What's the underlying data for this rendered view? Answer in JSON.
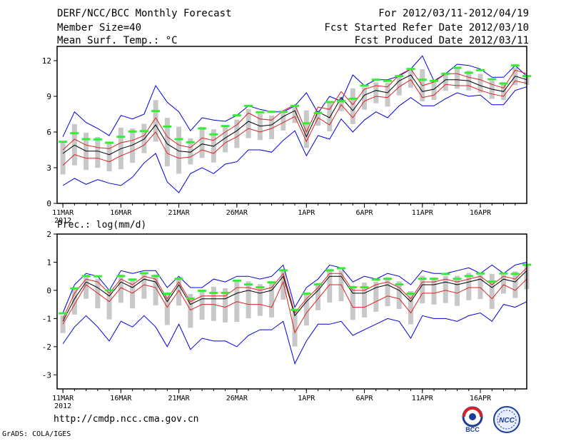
{
  "header": {
    "title": "DERF/NCC/BCC Monthly Forecast",
    "member_size": "Member Size=40",
    "variable": "Mean Surf. Temp.: °C",
    "for_range": "For 2012/03/11-2012/04/19",
    "fcst_started": "Fcst Started Refer Date 2012/03/10",
    "fcst_produced": "Fcst Produced Date 2012/03/11"
  },
  "footer": {
    "url": "http://cmdp.ncc.cma.gov.cn",
    "grads": "GrADS: COLA/IGES",
    "logo_bcc": "BCC",
    "logo_ncc": "NCC"
  },
  "colors": {
    "mean": "#000000",
    "spread": "#dd2222",
    "extreme": "#0000dd",
    "box": "#c8c8c8",
    "marker": "#33ee33"
  },
  "chart_data": [
    {
      "type": "line",
      "title": "Mean Surf. Temp.: °C",
      "x_tick_labels": [
        "11MAR",
        "16MAR",
        "21MAR",
        "26MAR",
        "1APR",
        "6APR",
        "11APR",
        "16APR"
      ],
      "x_tick_days": [
        0,
        5,
        10,
        15,
        21,
        26,
        31,
        36
      ],
      "x_sub_label": "2012",
      "x_range": [
        -0.5,
        40
      ],
      "ylim": [
        0,
        13.2
      ],
      "y_ticks": [
        0,
        3,
        6,
        9,
        12
      ],
      "series": [
        {
          "name": "ensemble max",
          "color_key": "extreme",
          "values": [
            5.6,
            7.7,
            6.8,
            6.3,
            5.7,
            7.4,
            7.1,
            7.5,
            9.9,
            8.5,
            7.7,
            6.1,
            7.2,
            7.0,
            6.9,
            7.4,
            8.2,
            7.9,
            7.7,
            7.7,
            8.2,
            9.3,
            7.6,
            9.0,
            8.6,
            10.8,
            9.9,
            10.4,
            10.4,
            10.7,
            11.3,
            12.4,
            10.3,
            10.9,
            11.7,
            11.6,
            11.3,
            10.6,
            10.6,
            11.6,
            10.7
          ]
        },
        {
          "name": "upper spread",
          "color_key": "spread",
          "values": [
            4.5,
            5.4,
            4.9,
            4.7,
            4.6,
            5.1,
            5.3,
            5.7,
            7.2,
            5.6,
            4.9,
            4.7,
            5.5,
            5.3,
            6.0,
            6.6,
            7.6,
            7.1,
            7.0,
            7.8,
            8.3,
            6.0,
            8.1,
            7.9,
            9.4,
            8.3,
            9.6,
            9.9,
            9.8,
            10.8,
            11.3,
            9.9,
            10.2,
            10.9,
            10.9,
            10.6,
            10.4,
            10.0,
            9.7,
            11.2,
            10.9
          ]
        },
        {
          "name": "ensemble mean",
          "color_key": "mean",
          "values": [
            4.2,
            4.9,
            4.4,
            4.4,
            4.1,
            4.6,
            4.9,
            5.4,
            6.6,
            5.0,
            4.4,
            4.3,
            5.0,
            4.8,
            5.5,
            6.1,
            6.9,
            6.5,
            6.6,
            7.3,
            7.8,
            5.6,
            7.7,
            7.2,
            8.9,
            7.8,
            9.1,
            9.5,
            9.3,
            10.3,
            10.8,
            9.4,
            9.6,
            10.4,
            10.4,
            10.3,
            9.9,
            9.6,
            9.4,
            10.7,
            10.4
          ]
        },
        {
          "name": "lower spread",
          "color_key": "spread",
          "values": [
            3.2,
            4.1,
            3.8,
            3.8,
            3.5,
            4.0,
            4.4,
            4.9,
            6.0,
            4.2,
            3.8,
            3.9,
            4.5,
            4.2,
            5.1,
            5.6,
            6.3,
            6.0,
            6.3,
            6.8,
            7.3,
            5.2,
            7.2,
            6.6,
            8.3,
            7.2,
            8.6,
            9.0,
            8.9,
            9.8,
            10.4,
            8.9,
            9.1,
            10.0,
            9.9,
            9.9,
            9.5,
            9.2,
            9.0,
            10.3,
            10.1
          ]
        },
        {
          "name": "ensemble min",
          "color_key": "extreme",
          "values": [
            1.5,
            2.1,
            1.6,
            2.0,
            1.7,
            1.5,
            2.2,
            3.4,
            4.2,
            1.8,
            0.9,
            2.5,
            3.0,
            2.5,
            3.3,
            3.5,
            4.5,
            4.5,
            4.3,
            5.3,
            6.1,
            4.0,
            5.7,
            5.4,
            7.1,
            6.0,
            7.0,
            7.7,
            7.2,
            8.2,
            8.9,
            8.2,
            8.2,
            8.8,
            9.3,
            9.0,
            9.1,
            8.3,
            8.3,
            9.5,
            9.8
          ]
        }
      ]
    },
    {
      "type": "line",
      "title": "Prec.: log(mm/d)",
      "x_tick_labels": [
        "11MAR",
        "16MAR",
        "21MAR",
        "26MAR",
        "1APR",
        "6APR",
        "11APR",
        "16APR"
      ],
      "x_tick_days": [
        0,
        5,
        10,
        15,
        21,
        26,
        31,
        36
      ],
      "x_sub_label": "2012",
      "x_range": [
        -0.5,
        40
      ],
      "ylim": [
        -3.5,
        2
      ],
      "y_ticks": [
        -3,
        -2,
        -1,
        0,
        1,
        2
      ],
      "series": [
        {
          "name": "ensemble max",
          "color_key": "extreme",
          "values": [
            -0.8,
            0.2,
            0.6,
            0.5,
            0.0,
            0.7,
            0.6,
            0.7,
            0.7,
            0.1,
            0.5,
            0.1,
            0.1,
            0.4,
            0.3,
            0.5,
            0.5,
            0.4,
            0.5,
            0.9,
            -0.6,
            0.1,
            0.4,
            0.9,
            0.8,
            0.3,
            0.5,
            0.4,
            0.6,
            0.5,
            0.2,
            0.7,
            0.6,
            0.6,
            0.7,
            0.8,
            0.6,
            0.9,
            0.6,
            0.9,
            1.0
          ]
        },
        {
          "name": "upper spread",
          "color_key": "spread",
          "values": [
            -1.0,
            -0.1,
            0.4,
            0.3,
            -0.1,
            0.4,
            0.2,
            0.5,
            0.4,
            -0.3,
            0.3,
            -0.4,
            -0.2,
            -0.2,
            -0.2,
            0.1,
            0.1,
            0.0,
            0.1,
            0.6,
            -0.8,
            -0.3,
            0.1,
            0.6,
            0.6,
            0.0,
            0.0,
            0.2,
            0.3,
            0.1,
            -0.3,
            0.3,
            0.3,
            0.4,
            0.3,
            0.4,
            0.5,
            0.2,
            0.5,
            0.4,
            0.8
          ]
        },
        {
          "name": "ensemble mean",
          "color_key": "mean",
          "values": [
            -1.1,
            -0.3,
            0.3,
            0.1,
            -0.2,
            0.3,
            0.1,
            0.4,
            0.3,
            -0.4,
            0.2,
            -0.5,
            -0.3,
            -0.3,
            -0.3,
            -0.1,
            0.0,
            -0.1,
            0.0,
            0.5,
            -0.9,
            -0.4,
            0.0,
            0.5,
            0.5,
            -0.1,
            -0.1,
            0.1,
            0.2,
            0.0,
            -0.4,
            0.2,
            0.2,
            0.3,
            0.2,
            0.3,
            0.4,
            0.1,
            0.4,
            0.3,
            0.7
          ]
        },
        {
          "name": "lower spread",
          "color_key": "spread",
          "values": [
            -1.2,
            -0.5,
            0.2,
            -0.1,
            -0.4,
            0.1,
            -0.1,
            0.2,
            0.1,
            -0.6,
            0.0,
            -0.7,
            -0.5,
            -0.5,
            -0.6,
            -0.4,
            -0.5,
            -0.5,
            -0.6,
            0.3,
            -1.5,
            -0.8,
            -0.3,
            0.2,
            0.2,
            -0.6,
            -0.6,
            -0.4,
            -0.2,
            -0.3,
            -0.8,
            -0.1,
            -0.1,
            0.0,
            -0.1,
            0.1,
            0.1,
            -0.3,
            0.2,
            0.0,
            0.4
          ]
        },
        {
          "name": "ensemble min",
          "color_key": "extreme",
          "values": [
            -1.9,
            -1.3,
            -0.9,
            -1.3,
            -1.8,
            -1.1,
            -1.3,
            -0.9,
            -1.3,
            -2.0,
            -1.2,
            -2.1,
            -1.7,
            -1.8,
            -1.8,
            -2.0,
            -1.6,
            -1.4,
            -1.4,
            -1.1,
            -2.6,
            -1.8,
            -1.2,
            -1.2,
            -1.1,
            -1.6,
            -1.4,
            -1.2,
            -1.0,
            -1.1,
            -1.7,
            -0.9,
            -1.0,
            -1.0,
            -1.1,
            -0.9,
            -0.8,
            -1.1,
            -0.5,
            -0.6,
            -0.4
          ]
        }
      ]
    }
  ]
}
